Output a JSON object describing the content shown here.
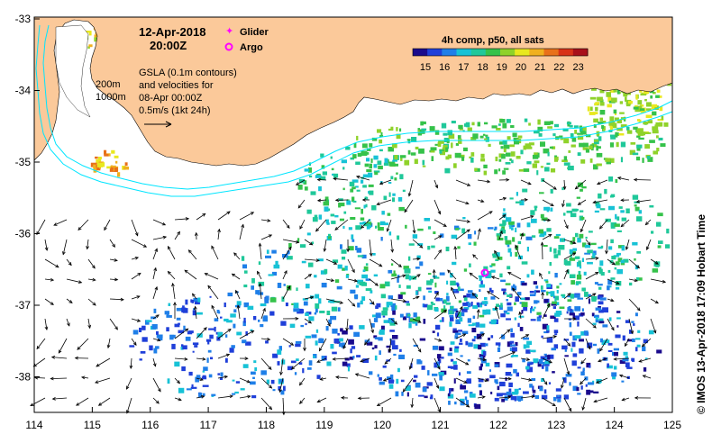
{
  "header": {
    "date": "12-Apr-2018",
    "time": "20:00Z"
  },
  "legend": {
    "glider_label": "Glider",
    "argo_label": "Argo",
    "glider_color": "#ff00ff",
    "argo_color": "#ff00ff"
  },
  "annotation": {
    "gsla_line1": "GSLA (0.1m contours)",
    "gsla_line2": "and velocities for",
    "gsla_line3": "08-Apr 00:00Z",
    "scale_label": "0.5m/s (1kt 24h)",
    "isobath_200": "200m",
    "isobath_1000": "1000m"
  },
  "colorbar": {
    "title": "4h comp, p50, all sats",
    "ticks": [
      "15",
      "16",
      "17",
      "18",
      "19",
      "20",
      "21",
      "22",
      "23"
    ],
    "colors": [
      "#1a0a8c",
      "#1f3fd9",
      "#1f7fe8",
      "#17c2d6",
      "#1fc89a",
      "#35c24a",
      "#8fd22a",
      "#e8e81f",
      "#f0b01f",
      "#e8701a",
      "#d83218",
      "#a8101a"
    ]
  },
  "axes": {
    "x_ticks": [
      "114",
      "115",
      "116",
      "117",
      "118",
      "119",
      "120",
      "121",
      "122",
      "123",
      "124",
      "125"
    ],
    "y_ticks": [
      "-33",
      "-34",
      "-35",
      "-36",
      "-37",
      "-38"
    ]
  },
  "credit": "© IMOS 13-Apr-2018 17:09 Hobart Time",
  "colors": {
    "land": "#fbc99a",
    "isobath": "#00e5ff",
    "arrow": "#000000"
  }
}
